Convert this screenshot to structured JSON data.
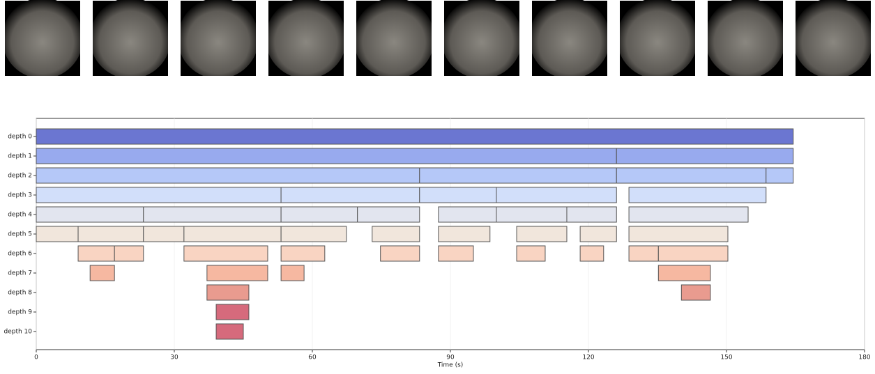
{
  "chart_data": {
    "type": "timeline",
    "xlabel": "Time (s)",
    "xlim": [
      0,
      180
    ],
    "xticks": [
      0,
      30,
      60,
      90,
      120,
      150,
      180
    ],
    "grid": true,
    "rows": [
      {
        "name": "depth 0",
        "color": "#6b76d1",
        "segments": [
          [
            0,
            164.5
          ]
        ]
      },
      {
        "name": "depth 1",
        "color": "#98aaee",
        "segments": [
          [
            0,
            126.1
          ],
          [
            126.1,
            164.5
          ]
        ]
      },
      {
        "name": "depth 2",
        "color": "#b5c8f8",
        "segments": [
          [
            0,
            83.3
          ],
          [
            83.3,
            126.1
          ],
          [
            126.1,
            158.6
          ],
          [
            158.6,
            164.5
          ]
        ]
      },
      {
        "name": "depth 3",
        "color": "#d2dffa",
        "segments": [
          [
            0,
            53.2
          ],
          [
            53.2,
            83.3
          ],
          [
            83.3,
            100
          ],
          [
            100,
            126.1
          ],
          [
            128.8,
            158.6
          ]
        ]
      },
      {
        "name": "depth 4",
        "color": "#e2e5ef",
        "segments": [
          [
            0,
            23.3
          ],
          [
            23.3,
            53.2
          ],
          [
            53.2,
            69.8
          ],
          [
            69.8,
            83.3
          ],
          [
            87.4,
            100
          ],
          [
            100,
            115.3
          ],
          [
            115.3,
            126.1
          ],
          [
            128.8,
            154.7
          ]
        ]
      },
      {
        "name": "depth 5",
        "color": "#f1e6dc",
        "segments": [
          [
            0,
            9.1
          ],
          [
            9.1,
            23.3
          ],
          [
            23.3,
            32.1
          ],
          [
            32.1,
            53.2
          ],
          [
            53.2,
            67.4
          ],
          [
            73,
            83.3
          ],
          [
            87.4,
            98.6
          ],
          [
            104.4,
            115.3
          ],
          [
            118.2,
            126.1
          ],
          [
            128.8,
            150.3
          ]
        ]
      },
      {
        "name": "depth 6",
        "color": "#f9d4c2",
        "segments": [
          [
            9.1,
            17
          ],
          [
            17,
            23.3
          ],
          [
            32.1,
            50.3
          ],
          [
            53.2,
            62.7
          ],
          [
            74.8,
            83.3
          ],
          [
            87.4,
            95
          ],
          [
            104.4,
            110.6
          ],
          [
            118.2,
            123.3
          ],
          [
            128.8,
            135.2
          ],
          [
            135.2,
            150.3
          ]
        ]
      },
      {
        "name": "depth 7",
        "color": "#f6b8a1",
        "segments": [
          [
            11.7,
            17
          ],
          [
            37.1,
            50.3
          ],
          [
            53.2,
            58.2
          ],
          [
            135.2,
            146.5
          ]
        ]
      },
      {
        "name": "depth 8",
        "color": "#e99b8f",
        "segments": [
          [
            37.1,
            46.2
          ],
          [
            140.2,
            146.5
          ]
        ]
      },
      {
        "name": "depth 9",
        "color": "#d66a7c",
        "segments": [
          [
            39.1,
            46.2
          ]
        ]
      },
      {
        "name": "depth 10",
        "color": "#d66a7c",
        "segments": [
          [
            39.1,
            45
          ]
        ]
      }
    ]
  }
}
